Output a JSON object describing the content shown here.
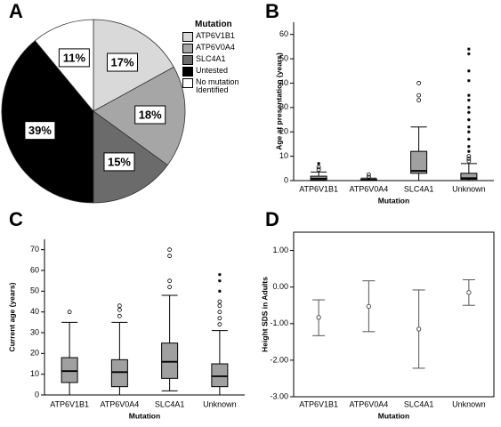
{
  "chart_data": [
    {
      "type": "pie",
      "label": "A",
      "legend_title": "Mutation",
      "categories": [
        "ATP6V1B1",
        "ATP6V0A4",
        "SLC4A1",
        "Untested",
        "No mutation Identified"
      ],
      "values": [
        17,
        18,
        15,
        39,
        11
      ],
      "value_labels": [
        "17%",
        "18%",
        "15%",
        "39%",
        "11%"
      ],
      "colors": [
        "#d9d9d9",
        "#a6a6a6",
        "#6b6b6b",
        "#000000",
        "#ffffff"
      ]
    },
    {
      "type": "box",
      "label": "B",
      "y_label": "Age at presentation (years)",
      "x_label": "Mutation",
      "color": "#a0a0a0",
      "categories": [
        "ATP6V1B1",
        "ATP6V0A4",
        "SLC4A1",
        "Unknown"
      ],
      "boxes": [
        {
          "whisker_low": 0,
          "q1": 0.2,
          "median": 0.8,
          "q3": 1.8,
          "whisker_high": 3.5,
          "outliers": [
            4.5,
            5.5
          ],
          "extremes": [
            7
          ]
        },
        {
          "whisker_low": 0,
          "q1": 0,
          "median": 0.2,
          "q3": 0.5,
          "whisker_high": 1,
          "outliers": [
            1.5,
            2.5
          ],
          "extremes": []
        },
        {
          "whisker_low": 0,
          "q1": 3,
          "median": 4,
          "q3": 12,
          "whisker_high": 22,
          "outliers": [
            33,
            35,
            40
          ],
          "extremes": []
        },
        {
          "whisker_low": 0,
          "q1": 0.5,
          "median": 1,
          "q3": 3,
          "whisker_high": 7,
          "outliers": [
            8,
            9,
            10
          ],
          "extremes": [
            12,
            14,
            17,
            20,
            22,
            25,
            28,
            30,
            33,
            35,
            41,
            45,
            52,
            54
          ]
        }
      ],
      "ylim": [
        0,
        65
      ],
      "yticks": [
        0,
        10,
        20,
        30,
        40,
        50,
        60
      ]
    },
    {
      "type": "box",
      "label": "C",
      "y_label": "Current age (years)",
      "x_label": "Mutation",
      "color": "#a0a0a0",
      "categories": [
        "ATP6V1B1",
        "ATP6V0A4",
        "SLC4A1",
        "Unknown"
      ],
      "boxes": [
        {
          "whisker_low": 0,
          "q1": 6,
          "median": 11.5,
          "q3": 18,
          "whisker_high": 35,
          "outliers": [
            40
          ],
          "extremes": []
        },
        {
          "whisker_low": 0,
          "q1": 4,
          "median": 11,
          "q3": 17,
          "whisker_high": 35,
          "outliers": [
            38,
            41,
            43
          ],
          "extremes": []
        },
        {
          "whisker_low": 2,
          "q1": 8,
          "median": 16,
          "q3": 25,
          "whisker_high": 48,
          "outliers": [
            52,
            55,
            67,
            70
          ],
          "extremes": []
        },
        {
          "whisker_low": 0,
          "q1": 4,
          "median": 9,
          "q3": 15,
          "whisker_high": 31,
          "outliers": [
            34,
            37,
            40,
            43,
            45
          ],
          "extremes": [
            50,
            55,
            58
          ]
        }
      ],
      "ylim": [
        0,
        75
      ],
      "yticks": [
        0,
        10,
        20,
        30,
        40,
        50,
        60,
        70
      ]
    },
    {
      "type": "errorbar",
      "label": "D",
      "y_label": "Height SDS in Adults",
      "x_label": "Mutation",
      "color": "#555555",
      "categories": [
        "ATP6V1B1",
        "ATP6V0A4",
        "SLC4A1",
        "Unknown"
      ],
      "values": [
        -0.83,
        -0.53,
        -1.15,
        -0.15
      ],
      "lower": [
        -1.33,
        -1.22,
        -2.22,
        -0.5
      ],
      "upper": [
        -0.35,
        0.17,
        -0.08,
        0.2
      ],
      "ylim": [
        -3,
        1.5
      ],
      "yticks": [
        {
          "value": -3,
          "label": "-3.00"
        },
        {
          "value": -2,
          "label": "-2.00"
        },
        {
          "value": -1,
          "label": "-1.00"
        },
        {
          "value": 0,
          "label": "0.00"
        },
        {
          "value": 1,
          "label": "1.00"
        }
      ]
    }
  ]
}
